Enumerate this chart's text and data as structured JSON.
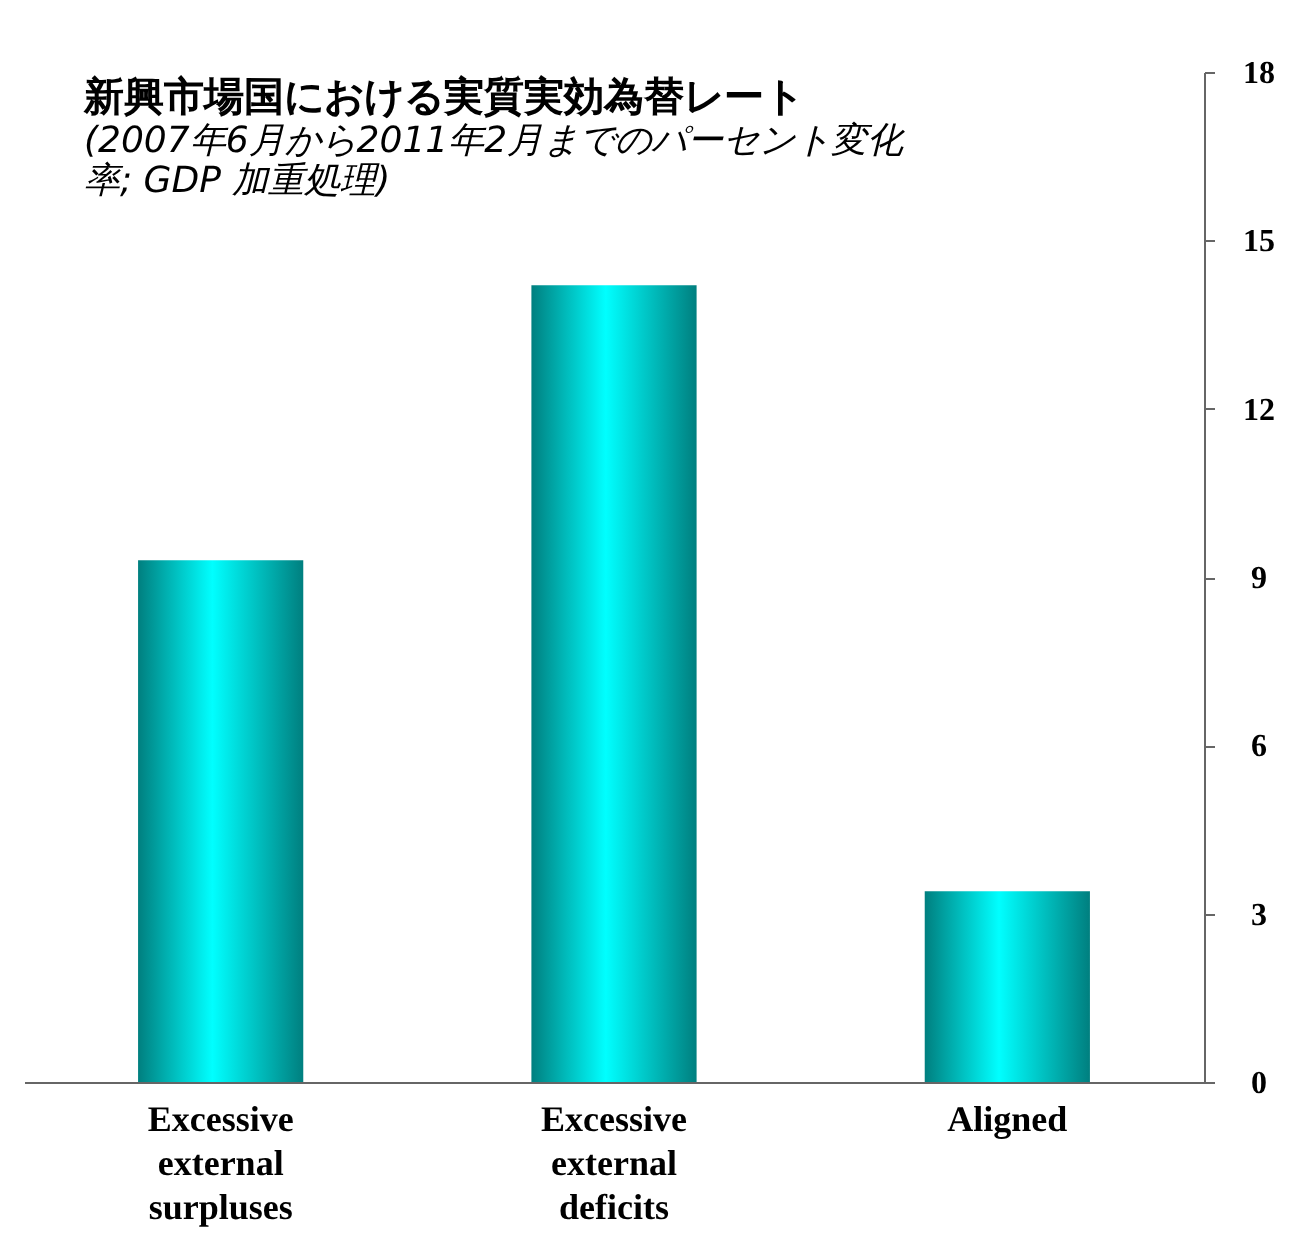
{
  "chart_data": {
    "type": "bar",
    "title": "新興市場国における実質実効為替レート",
    "subtitle": "(2007年6月から2011年2月までのパーセント変化率; GDP 加重処理)",
    "categories": [
      "Excessive external surpluses",
      "Excessive external deficits",
      "Aligned"
    ],
    "values": [
      9.3,
      14.2,
      3.4
    ],
    "color": "#00ffff",
    "ylim": [
      0,
      18
    ],
    "yticks": [
      0,
      3,
      6,
      9,
      12,
      15,
      18
    ],
    "grid": false
  }
}
